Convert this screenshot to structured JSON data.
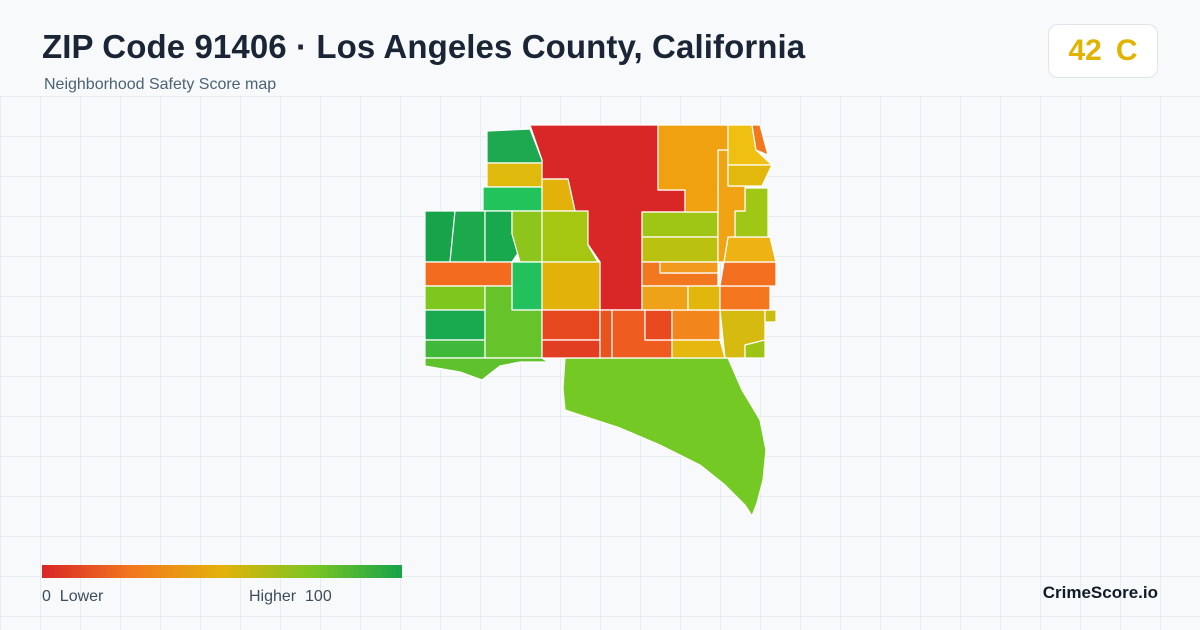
{
  "header": {
    "title": "ZIP Code 91406 · Los Angeles County, California",
    "subtitle": "Neighborhood Safety Score map"
  },
  "score": {
    "value": "42",
    "grade": "C",
    "color": "#e0b400"
  },
  "legend": {
    "low_label": "0  Lower",
    "high_label": "Higher  100",
    "colors": [
      "#d92626",
      "#f2781f",
      "#e3b20a",
      "#7cc522",
      "#16a34a"
    ]
  },
  "brand": "CrimeScore.io"
}
